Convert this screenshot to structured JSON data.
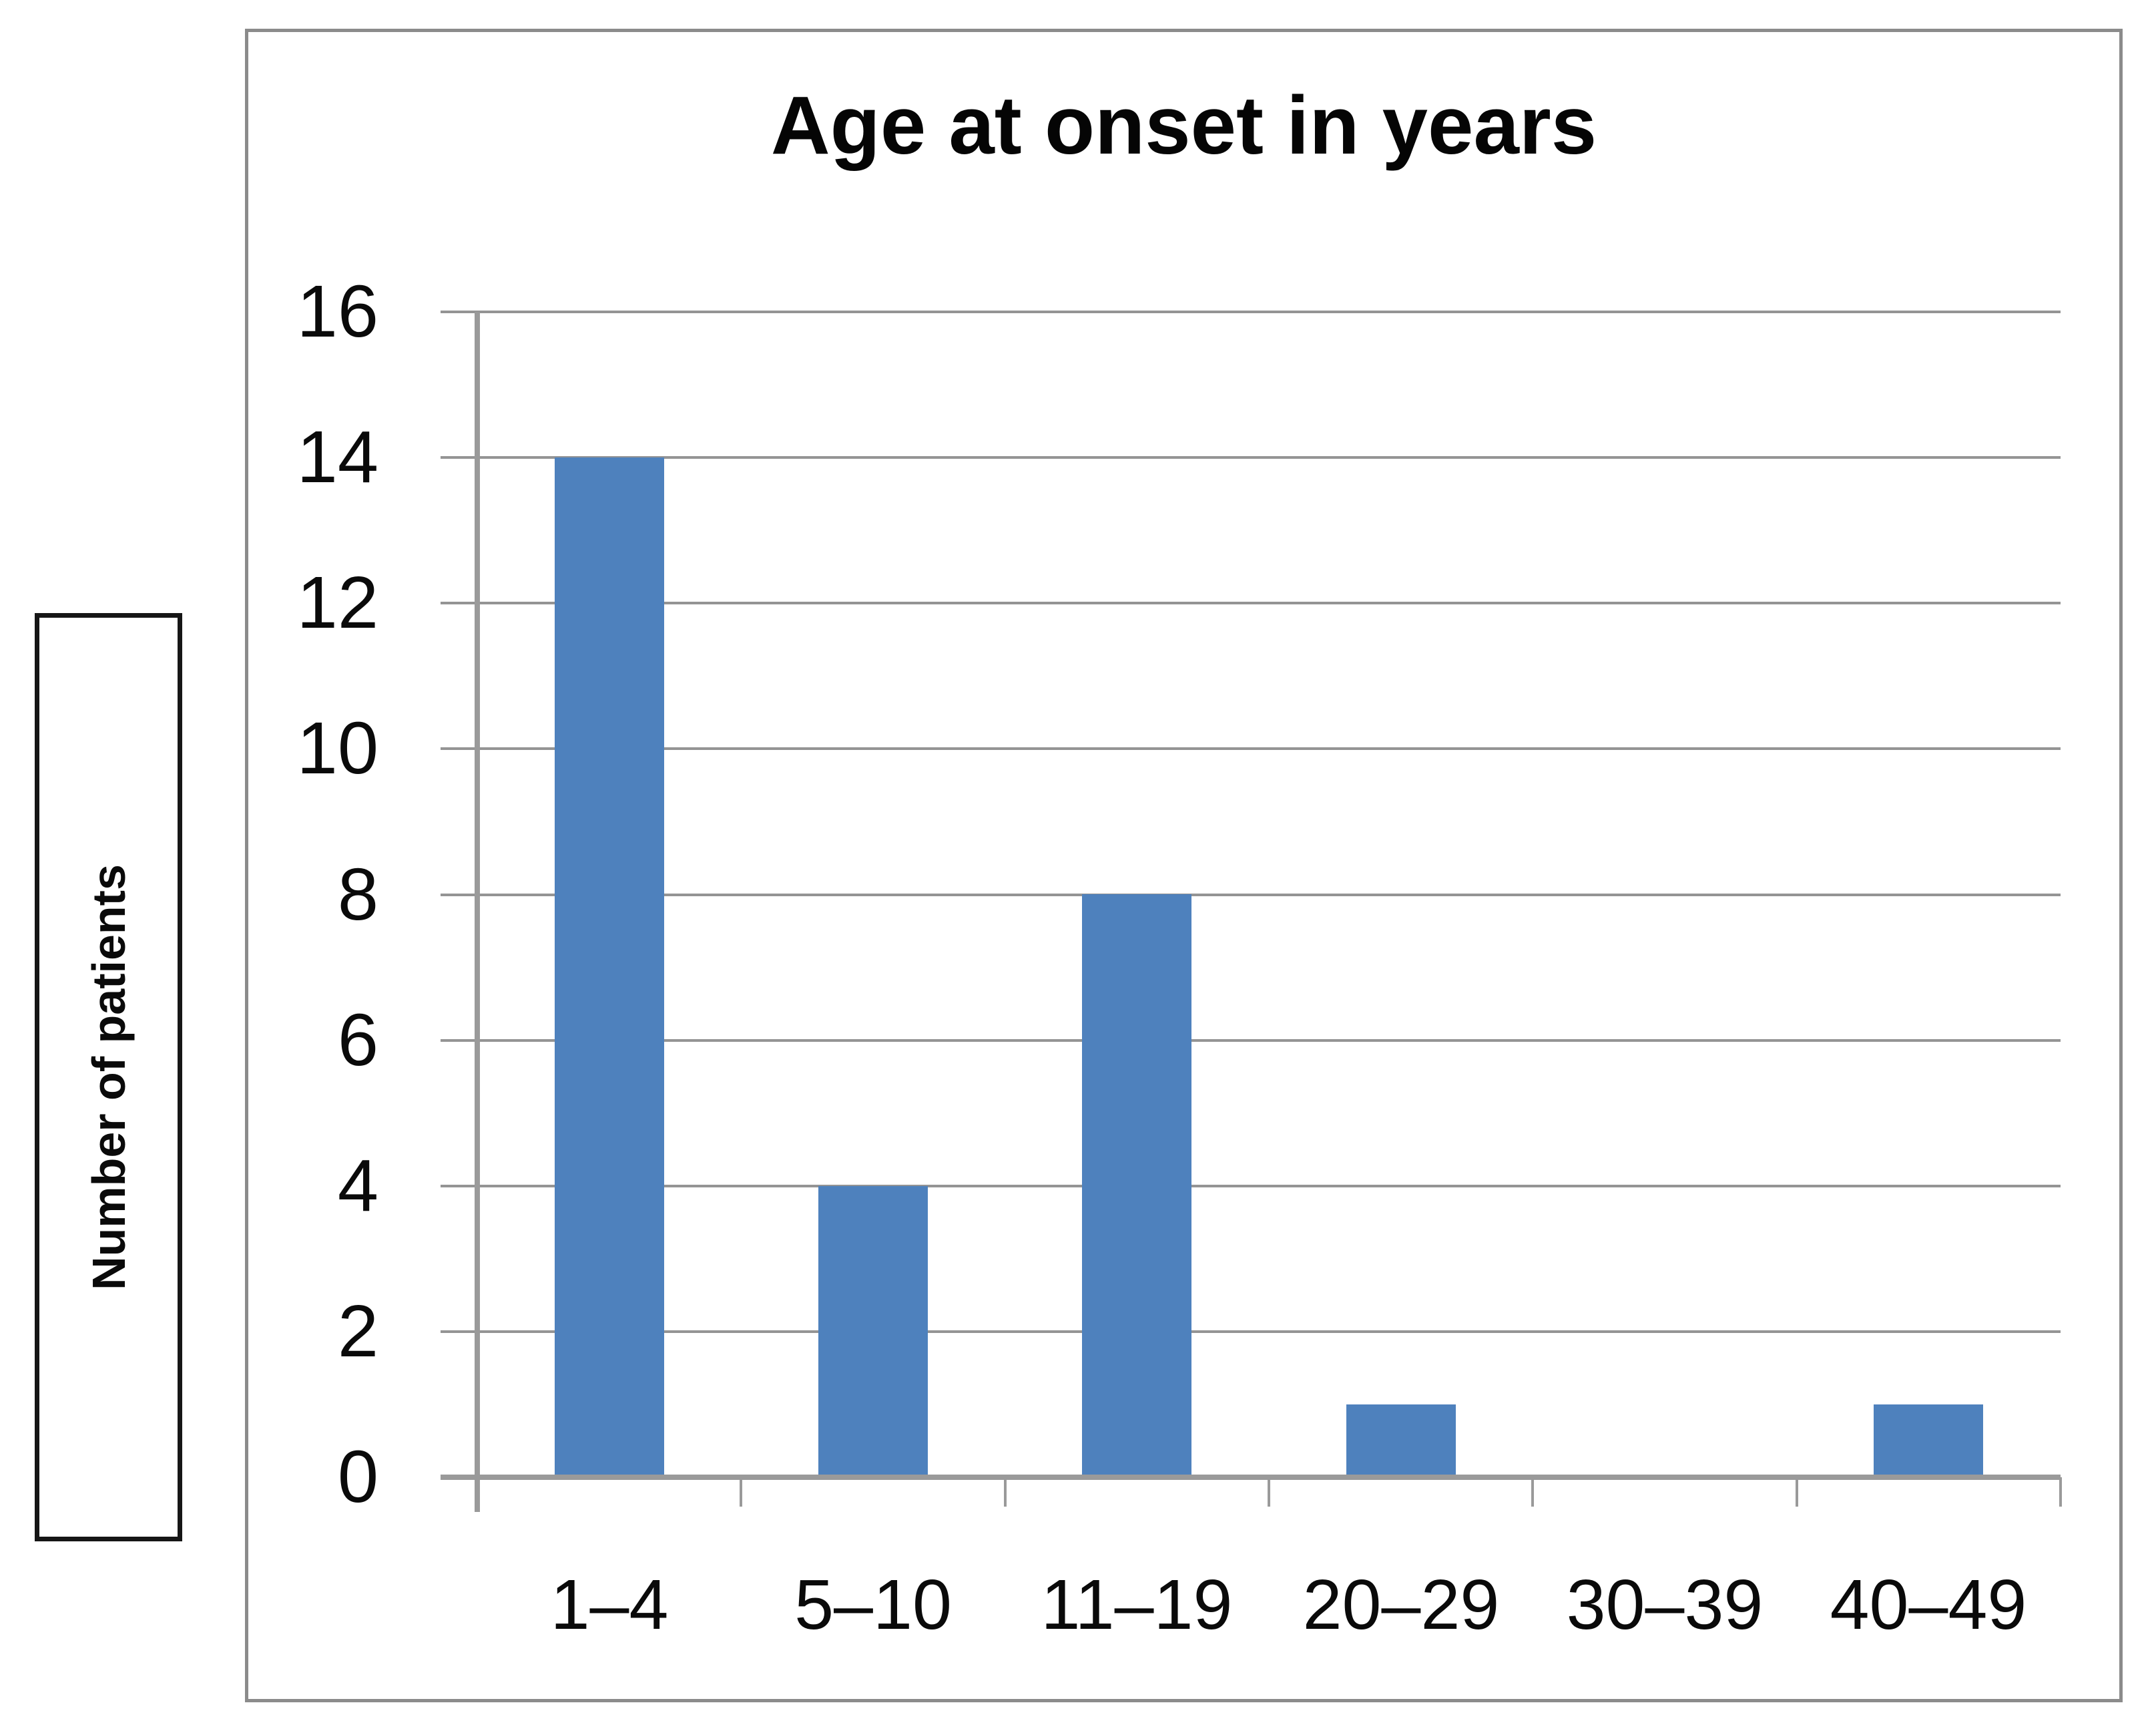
{
  "figure": {
    "background": "#ffffff",
    "text_color": "#0a0a0a"
  },
  "y_axis_title_box": {
    "label": "Number of patients",
    "border_color": "#161616"
  },
  "chart_data": {
    "type": "bar",
    "title": "Age at onset in years",
    "categories": [
      "1–4",
      "5–10",
      "11–19",
      "20–29",
      "30–39",
      "40–49"
    ],
    "values": [
      14,
      4,
      8,
      1,
      0,
      1
    ],
    "xlabel": "",
    "ylabel": "Number of patients",
    "ylim": [
      0,
      16
    ],
    "ytick_step": 2,
    "ytick_labels": [
      "0",
      "2",
      "4",
      "6",
      "8",
      "10",
      "12",
      "14",
      "16"
    ],
    "grid": true,
    "legend_position": "none",
    "bar_color": "#4E81BD",
    "gridline_color": "#949494",
    "axis_color": "#9A9A9A",
    "chart_border_color": "#8B8B8B"
  }
}
